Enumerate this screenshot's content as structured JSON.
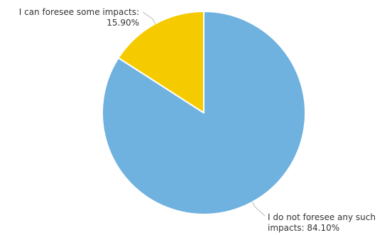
{
  "chart_data": {
    "type": "pie",
    "title": "",
    "legend": "none",
    "slices": [
      {
        "label_line1": "I can foresee some impacts:",
        "label_line2": "15.90%",
        "value": 15.9,
        "color": "#f5cb00"
      },
      {
        "label_line1": "I do not foresee any such",
        "label_line2": "impacts: 84.10%",
        "value": 84.1,
        "color": "#6fb1df"
      }
    ],
    "slice_border_color": "#ffffff",
    "leader_line_color": "#b8b8b8"
  }
}
